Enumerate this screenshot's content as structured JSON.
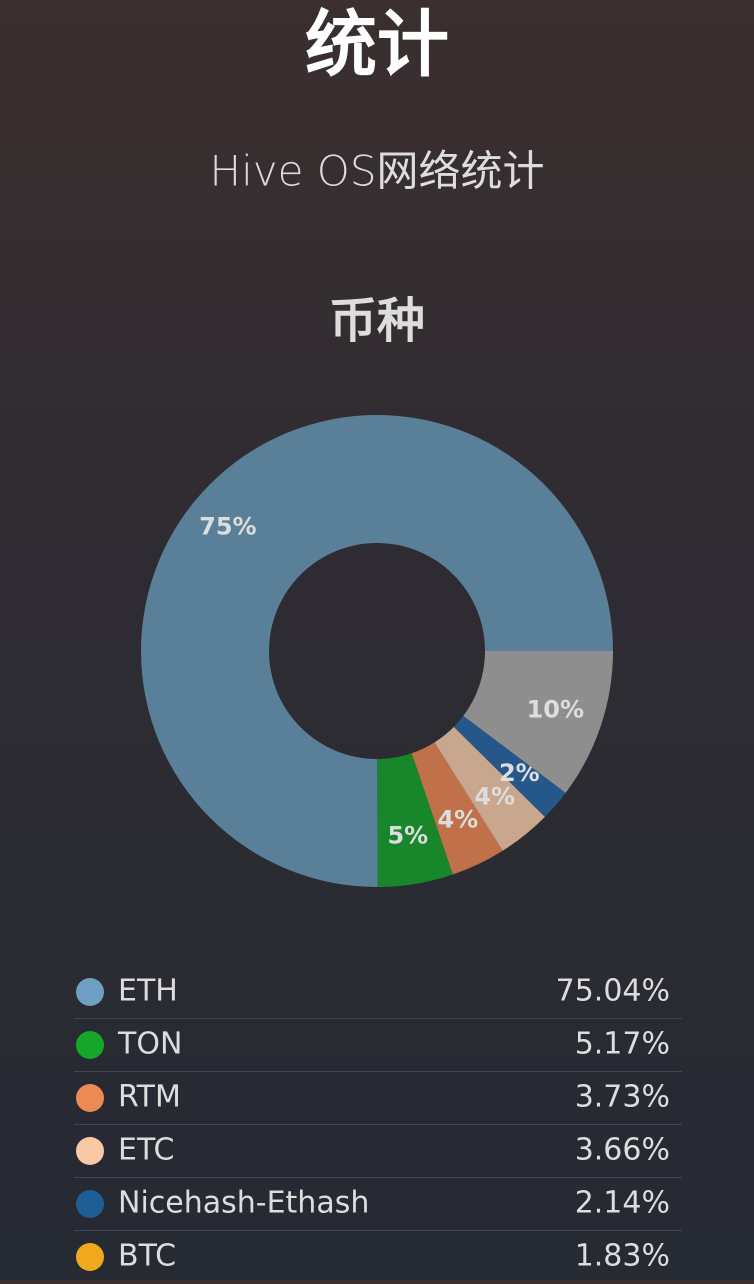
{
  "header": {
    "title": "统计",
    "subtitle": "Hive OS网络统计"
  },
  "chart_data": {
    "type": "pie",
    "title": "币种",
    "categories": [
      "ETH",
      "TON",
      "RTM",
      "ETC",
      "Nicehash-Ethash",
      null
    ],
    "values": [
      75.04,
      5.17,
      3.73,
      3.66,
      2.14,
      10.26
    ],
    "value_labels": [
      "75%",
      "5%",
      "4%",
      "4%",
      "2%",
      "10%"
    ],
    "colors": [
      "#5a7f98",
      "#18862a",
      "#c0714a",
      "#c9a68e",
      "#25578a",
      "#8e8e8e"
    ]
  },
  "legend": {
    "rows": [
      {
        "name": "ETH",
        "value": "75.04%",
        "color": "#6fa0c4"
      },
      {
        "name": "TON",
        "value": "5.17%",
        "color": "#15a62a"
      },
      {
        "name": "RTM",
        "value": "3.73%",
        "color": "#ec8a56"
      },
      {
        "name": "ETC",
        "value": "3.66%",
        "color": "#f9c9a6"
      },
      {
        "name": "Nicehash-Ethash",
        "value": "2.14%",
        "color": "#1f5e94"
      },
      {
        "name": "BTC",
        "value": "1.83%",
        "color": "#f0a81c"
      }
    ]
  }
}
